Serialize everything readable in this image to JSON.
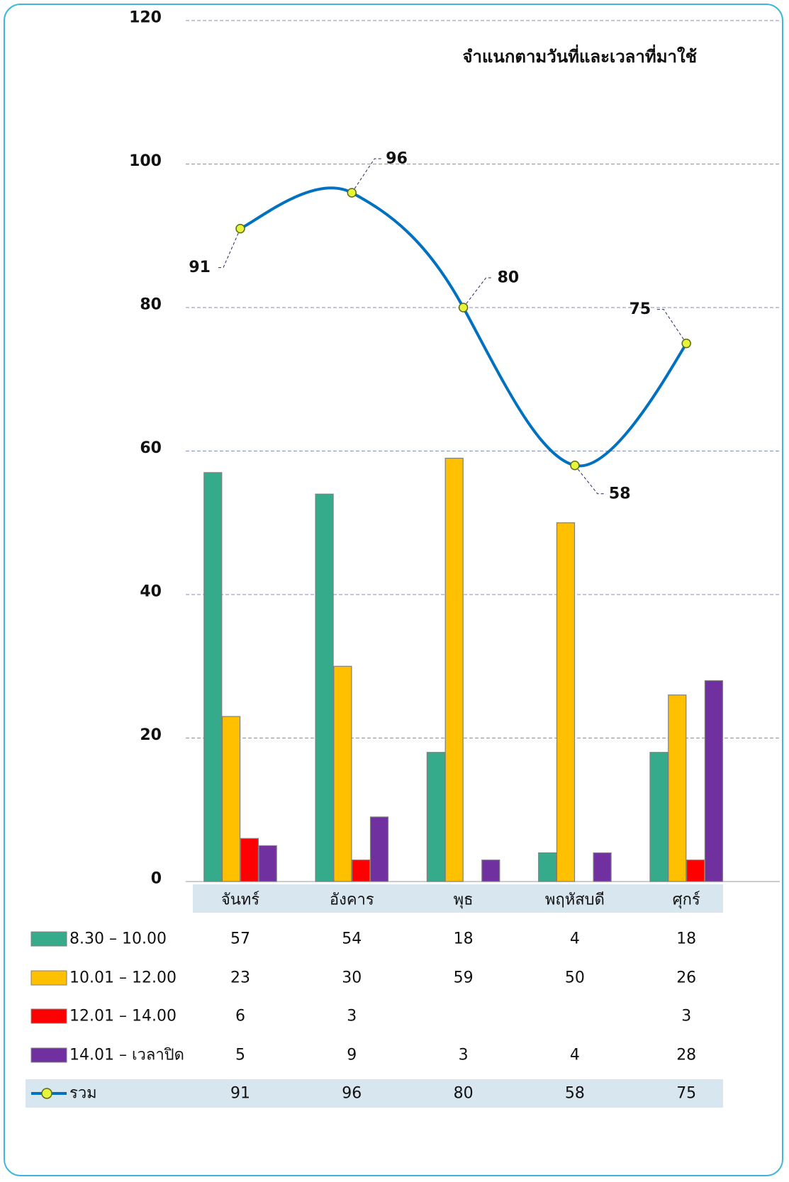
{
  "chart_data": {
    "type": "bar",
    "title": "จำแนกตามวันที่และเวลาที่มาใช้",
    "categories": [
      "จันทร์",
      "อังคาร",
      "พุธ",
      "พฤหัสบดี",
      "ศุกร์"
    ],
    "ylim": [
      0,
      120
    ],
    "yticks": [
      0,
      20,
      40,
      60,
      80,
      100,
      120
    ],
    "grid": true,
    "legend_placement": "bottom data table",
    "series": [
      {
        "name": "8.30 – 10.00",
        "kind": "bar",
        "color": "#35ab8b",
        "values": [
          57,
          54,
          18,
          4,
          18
        ]
      },
      {
        "name": "10.01 – 12.00",
        "kind": "bar",
        "color": "#ffc000",
        "values": [
          23,
          30,
          59,
          50,
          26
        ]
      },
      {
        "name": "12.01 – 14.00",
        "kind": "bar",
        "color": "#ff0000",
        "values": [
          6,
          3,
          null,
          null,
          3
        ]
      },
      {
        "name": "14.01 – เวลาปิด",
        "kind": "bar",
        "color": "#7030a0",
        "values": [
          5,
          9,
          3,
          4,
          28
        ]
      },
      {
        "name": "รวม",
        "kind": "line",
        "color": "#0070c0",
        "marker_color": "#e6f53b",
        "values": [
          91,
          96,
          80,
          58,
          75
        ]
      }
    ]
  }
}
